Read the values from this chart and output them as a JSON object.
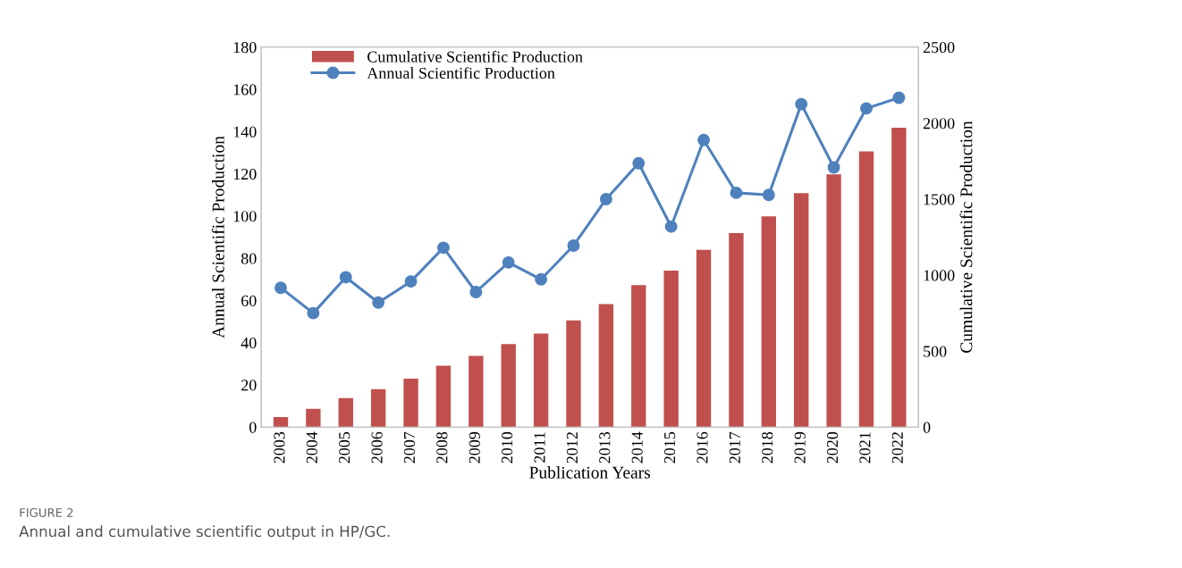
{
  "chart_data": {
    "type": "bar",
    "xlabel": "Publication Years",
    "ylabel": "Annual Scientific Production",
    "y2label": "Cumulative Scientific Production",
    "categories": [
      "2003",
      "2004",
      "2005",
      "2006",
      "2007",
      "2008",
      "2009",
      "2010",
      "2011",
      "2012",
      "2013",
      "2014",
      "2015",
      "2016",
      "2017",
      "2018",
      "2019",
      "2020",
      "2021",
      "2022"
    ],
    "series": [
      {
        "name": "Cumulative Scientific Production",
        "axis": "y2",
        "color": "#c0504d",
        "values": [
          66,
          120,
          191,
          250,
          319,
          404,
          468,
          546,
          616,
          702,
          810,
          935,
          1030,
          1166,
          1277,
          1387,
          1540,
          1663,
          1814,
          1970
        ]
      },
      {
        "name": "Annual Scientific Production",
        "type": "line",
        "color": "#4f81bd",
        "marker": "circle",
        "line_style": "solid",
        "values": [
          66,
          54,
          71,
          59,
          69,
          85,
          64,
          78,
          70,
          86,
          108,
          125,
          95,
          136,
          111,
          110,
          153,
          123,
          151,
          156
        ]
      }
    ],
    "ylim": [
      0,
      180
    ],
    "yticks": [
      0,
      20,
      40,
      60,
      80,
      100,
      120,
      140,
      160,
      180
    ],
    "y2lim": [
      0,
      2500
    ],
    "y2ticks": [
      0,
      500,
      1000,
      1500,
      2000,
      2500
    ],
    "grid": false,
    "legend": "top left",
    "annotations": [
      "FIGURE 2",
      "Annual and cumulative scientific output in HP/GC."
    ]
  }
}
